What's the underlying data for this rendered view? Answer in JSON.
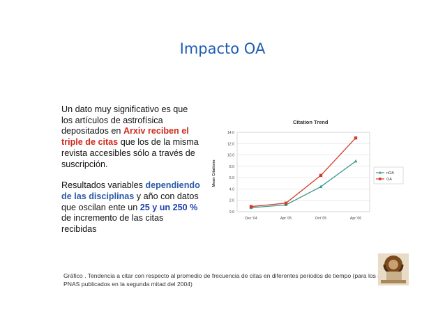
{
  "slide": {
    "title": "Impacto OA"
  },
  "body": {
    "p1_a": "Un dato muy significativo es que los artículos de astrofísica depositados en ",
    "p1_b": "Arxiv reciben el triple de citas",
    "p1_c": " que los de la misma revista accesibles sólo a través de suscripción.",
    "p2_a": "Resultados variables ",
    "p2_b": "dependiendo de las disciplinas",
    "p2_c": " y año con datos que oscilan ente un ",
    "p2_d": "25 y un 250 %",
    "p2_e": " de incremento de las citas recibidas"
  },
  "caption": {
    "text": "Gráfico . Tendencia a citar con respecto al promedio de frecuencia de citas en diferentes periodos de tiempo (para los artículos de PNAS publicados en la segunda mitad del 2004)"
  },
  "chart_data": {
    "type": "line",
    "title": "Citation Trend",
    "ylabel": "Mean Citations",
    "xlabel": "",
    "categories": [
      "Dec '04",
      "Apr '05",
      "Oct '05",
      "Apr '06"
    ],
    "ylim": [
      0,
      14
    ],
    "yticks": [
      "0.0",
      "2.0",
      "4.0",
      "6.0",
      "8.0",
      "10.0",
      "12.0",
      "14.0"
    ],
    "grid": true,
    "legend_position": "right",
    "series": [
      {
        "name": "nOA",
        "values": [
          0.7,
          1.2,
          4.4,
          8.9
        ],
        "color": "#3a9a8c",
        "marker": "triangle"
      },
      {
        "name": "OA",
        "values": [
          0.9,
          1.5,
          6.4,
          13.0
        ],
        "color": "#d23a2a",
        "marker": "square"
      }
    ]
  },
  "colors": {
    "title": "#1f5cb5",
    "highlight_red": "#d12a1c",
    "highlight_blue": "#2b5aa8"
  },
  "logo": {
    "icon": "institution-logo-icon"
  }
}
